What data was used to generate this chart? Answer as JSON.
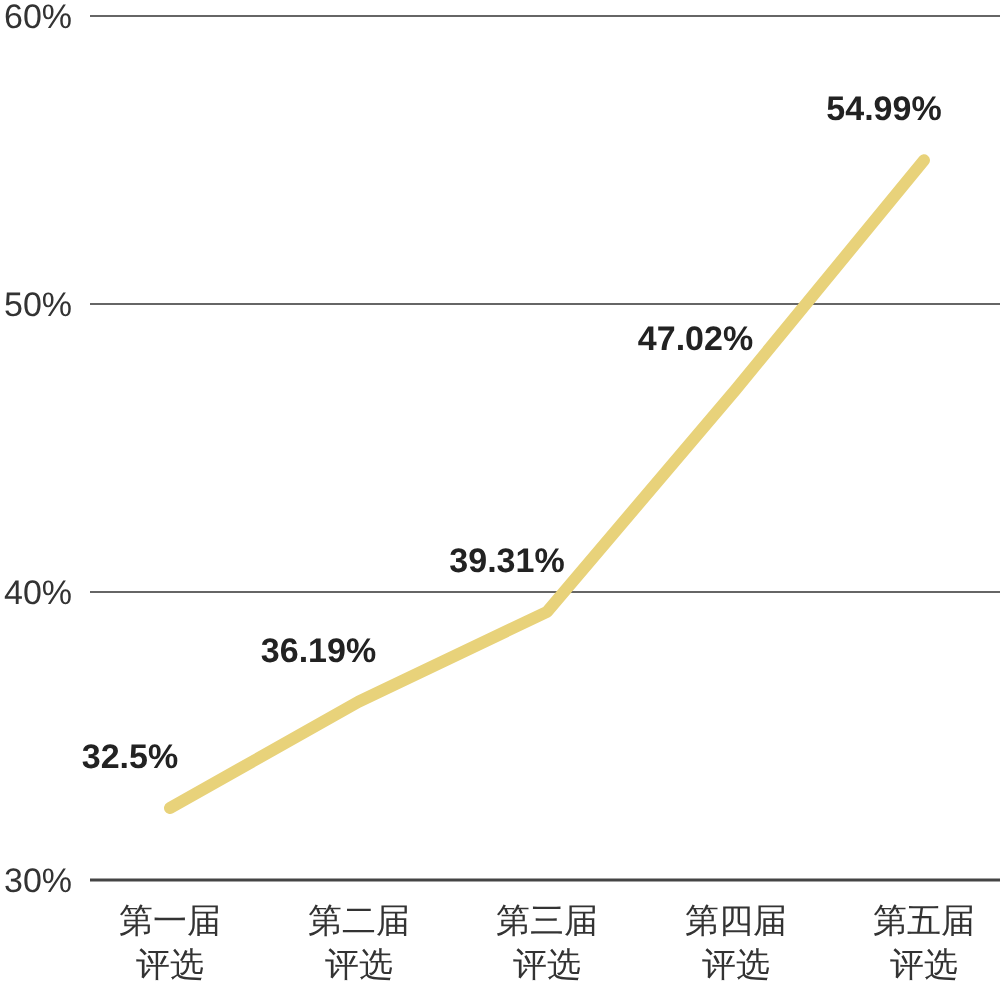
{
  "chart_data": {
    "type": "line",
    "categories": [
      "第一届评选",
      "第二届评选",
      "第三届评选",
      "第四届评选",
      "第五届评选"
    ],
    "series": [
      {
        "color": "#e8d27a",
        "values": [
          32.5,
          36.19,
          39.31,
          47.02,
          54.99
        ],
        "value_labels": [
          "32.5%",
          "36.19%",
          "39.31%",
          "47.02%",
          "54.99%"
        ]
      }
    ],
    "ylim": [
      30,
      60
    ],
    "yticks": [
      {
        "value": 30,
        "label": "30%"
      },
      {
        "value": 40,
        "label": "40%"
      },
      {
        "value": 50,
        "label": "50%"
      },
      {
        "value": 60,
        "label": "60%"
      }
    ],
    "grid": "y",
    "marker": "none",
    "line_style": "solid"
  }
}
